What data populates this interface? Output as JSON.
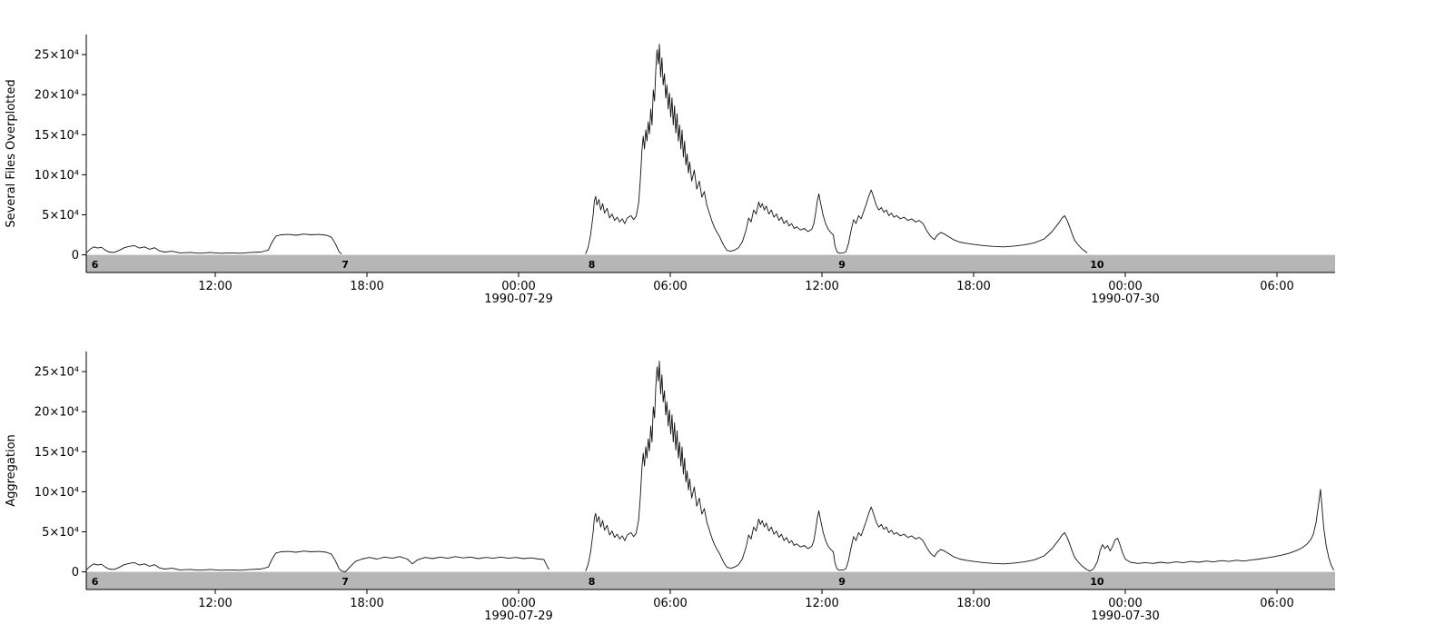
{
  "figure": {
    "background": "#ffffff",
    "num_subplots": 2
  },
  "chart_data": [
    {
      "type": "line",
      "title": "",
      "xlabel": "",
      "ylabel": "Several Files Overplotted",
      "x_unit": "hours since 1990-07-28 00:00",
      "y_unit": "counts, values in units of 10^4",
      "xlim": [
        6.9,
        56.3
      ],
      "ylim": [
        -2.2,
        27.5
      ],
      "grid": false,
      "legend": "none",
      "line_color": "#111111",
      "yticks": [
        {
          "v": 0,
          "label": "0"
        },
        {
          "v": 5,
          "label": "5×10⁴"
        },
        {
          "v": 10,
          "label": "10×10⁴"
        },
        {
          "v": 15,
          "label": "15×10⁴"
        },
        {
          "v": 20,
          "label": "20×10⁴"
        },
        {
          "v": 25,
          "label": "25×10⁴"
        }
      ],
      "xticks": [
        {
          "v": 12,
          "label": "12:00"
        },
        {
          "v": 18,
          "label": "18:00"
        },
        {
          "v": 24,
          "label": "00:00",
          "date": "1990-07-29"
        },
        {
          "v": 30,
          "label": "06:00"
        },
        {
          "v": 36,
          "label": "12:00"
        },
        {
          "v": 42,
          "label": "18:00"
        },
        {
          "v": 48,
          "label": "00:00",
          "date": "1990-07-30"
        },
        {
          "v": 54,
          "label": "06:00"
        }
      ],
      "band": {
        "color": "#b6b6b6",
        "label_color": "#ffffff",
        "from": 0,
        "markers": [
          {
            "t": 7.0,
            "label": "6"
          },
          {
            "t": 16.9,
            "label": "7"
          },
          {
            "t": 26.65,
            "label": "8"
          },
          {
            "t": 36.55,
            "label": "9"
          },
          {
            "t": 46.5,
            "label": "10"
          }
        ]
      },
      "segments_used": [
        "day28",
        "event"
      ]
    },
    {
      "type": "line",
      "title": "",
      "xlabel": "",
      "ylabel": "Aggregation",
      "x_unit": "hours since 1990-07-28 00:00",
      "y_unit": "counts, values in units of 10^4",
      "xlim": [
        6.9,
        56.3
      ],
      "ylim": [
        -2.2,
        27.5
      ],
      "grid": false,
      "legend": "none",
      "line_color": "#111111",
      "yticks": [
        {
          "v": 0,
          "label": "0"
        },
        {
          "v": 5,
          "label": "5×10⁴"
        },
        {
          "v": 10,
          "label": "10×10⁴"
        },
        {
          "v": 15,
          "label": "15×10⁴"
        },
        {
          "v": 20,
          "label": "20×10⁴"
        },
        {
          "v": 25,
          "label": "25×10⁴"
        }
      ],
      "xticks": [
        {
          "v": 12,
          "label": "12:00"
        },
        {
          "v": 18,
          "label": "18:00"
        },
        {
          "v": 24,
          "label": "00:00",
          "date": "1990-07-29"
        },
        {
          "v": 30,
          "label": "06:00"
        },
        {
          "v": 36,
          "label": "12:00"
        },
        {
          "v": 42,
          "label": "18:00"
        },
        {
          "v": 48,
          "label": "00:00",
          "date": "1990-07-30"
        },
        {
          "v": 54,
          "label": "06:00"
        }
      ],
      "band": {
        "color": "#b6b6b6",
        "label_color": "#ffffff",
        "from": 0,
        "markers": [
          {
            "t": 7.0,
            "label": "6"
          },
          {
            "t": 16.9,
            "label": "7"
          },
          {
            "t": 26.65,
            "label": "8"
          },
          {
            "t": 36.55,
            "label": "9"
          },
          {
            "t": 46.5,
            "label": "10"
          }
        ]
      },
      "segments_used": [
        "day28",
        "evening_fill",
        "event",
        "tail"
      ]
    }
  ],
  "series_segments": {
    "day28": [
      [
        6.9,
        0.25
      ],
      [
        7.05,
        0.7
      ],
      [
        7.2,
        1.0
      ],
      [
        7.35,
        0.85
      ],
      [
        7.5,
        0.95
      ],
      [
        7.65,
        0.6
      ],
      [
        7.8,
        0.35
      ],
      [
        8.0,
        0.3
      ],
      [
        8.2,
        0.55
      ],
      [
        8.4,
        0.9
      ],
      [
        8.6,
        1.05
      ],
      [
        8.8,
        1.15
      ],
      [
        9.0,
        0.85
      ],
      [
        9.2,
        1.0
      ],
      [
        9.4,
        0.7
      ],
      [
        9.6,
        0.9
      ],
      [
        9.8,
        0.5
      ],
      [
        10.0,
        0.35
      ],
      [
        10.3,
        0.45
      ],
      [
        10.6,
        0.25
      ],
      [
        11.0,
        0.3
      ],
      [
        11.4,
        0.2
      ],
      [
        11.8,
        0.3
      ],
      [
        12.2,
        0.2
      ],
      [
        12.6,
        0.25
      ],
      [
        13.0,
        0.2
      ],
      [
        13.4,
        0.3
      ],
      [
        13.8,
        0.35
      ],
      [
        14.1,
        0.6
      ],
      [
        14.25,
        1.6
      ],
      [
        14.4,
        2.35
      ],
      [
        14.6,
        2.5
      ],
      [
        14.9,
        2.55
      ],
      [
        15.2,
        2.45
      ],
      [
        15.5,
        2.6
      ],
      [
        15.8,
        2.5
      ],
      [
        16.1,
        2.55
      ],
      [
        16.4,
        2.45
      ],
      [
        16.6,
        2.2
      ],
      [
        16.75,
        1.4
      ],
      [
        16.9,
        0.4
      ],
      [
        17.0,
        0.1
      ]
    ],
    "evening_fill": [
      [
        17.0,
        0.1
      ],
      [
        17.15,
        0.0
      ],
      [
        17.35,
        0.7
      ],
      [
        17.55,
        1.3
      ],
      [
        17.8,
        1.6
      ],
      [
        18.1,
        1.8
      ],
      [
        18.4,
        1.6
      ],
      [
        18.7,
        1.85
      ],
      [
        19.0,
        1.7
      ],
      [
        19.3,
        1.9
      ],
      [
        19.6,
        1.6
      ],
      [
        19.8,
        1.0
      ],
      [
        20.0,
        1.5
      ],
      [
        20.3,
        1.8
      ],
      [
        20.6,
        1.65
      ],
      [
        20.9,
        1.85
      ],
      [
        21.2,
        1.7
      ],
      [
        21.5,
        1.9
      ],
      [
        21.8,
        1.75
      ],
      [
        22.1,
        1.85
      ],
      [
        22.4,
        1.65
      ],
      [
        22.7,
        1.8
      ],
      [
        23.0,
        1.7
      ],
      [
        23.3,
        1.85
      ],
      [
        23.6,
        1.7
      ],
      [
        23.9,
        1.8
      ],
      [
        24.2,
        1.65
      ],
      [
        24.5,
        1.75
      ],
      [
        24.8,
        1.6
      ],
      [
        25.0,
        1.55
      ],
      [
        25.1,
        0.9
      ],
      [
        25.2,
        0.3
      ]
    ],
    "event": [
      [
        26.65,
        0.1
      ],
      [
        26.75,
        0.9
      ],
      [
        26.85,
        2.5
      ],
      [
        26.95,
        5.0
      ],
      [
        27.0,
        6.8
      ],
      [
        27.05,
        7.3
      ],
      [
        27.1,
        6.2
      ],
      [
        27.18,
        6.9
      ],
      [
        27.25,
        5.6
      ],
      [
        27.33,
        6.4
      ],
      [
        27.4,
        5.2
      ],
      [
        27.5,
        5.8
      ],
      [
        27.6,
        4.6
      ],
      [
        27.7,
        5.1
      ],
      [
        27.8,
        4.3
      ],
      [
        27.9,
        4.7
      ],
      [
        28.0,
        4.1
      ],
      [
        28.1,
        4.5
      ],
      [
        28.2,
        3.9
      ],
      [
        28.3,
        4.6
      ],
      [
        28.45,
        4.9
      ],
      [
        28.55,
        4.4
      ],
      [
        28.65,
        4.8
      ],
      [
        28.75,
        6.5
      ],
      [
        28.82,
        9.5
      ],
      [
        28.88,
        13.0
      ],
      [
        28.93,
        14.8
      ],
      [
        28.98,
        13.2
      ],
      [
        29.03,
        15.6
      ],
      [
        29.08,
        14.2
      ],
      [
        29.13,
        16.6
      ],
      [
        29.18,
        15.1
      ],
      [
        29.23,
        18.2
      ],
      [
        29.28,
        16.2
      ],
      [
        29.33,
        20.6
      ],
      [
        29.38,
        19.2
      ],
      [
        29.43,
        23.2
      ],
      [
        29.48,
        25.6
      ],
      [
        29.53,
        23.8
      ],
      [
        29.57,
        26.3
      ],
      [
        29.62,
        22.2
      ],
      [
        29.67,
        24.6
      ],
      [
        29.72,
        21.2
      ],
      [
        29.77,
        22.6
      ],
      [
        29.82,
        19.6
      ],
      [
        29.87,
        21.2
      ],
      [
        29.92,
        18.2
      ],
      [
        29.97,
        20.2
      ],
      [
        30.02,
        17.2
      ],
      [
        30.07,
        19.6
      ],
      [
        30.12,
        16.2
      ],
      [
        30.17,
        18.6
      ],
      [
        30.22,
        15.2
      ],
      [
        30.27,
        17.6
      ],
      [
        30.32,
        14.2
      ],
      [
        30.37,
        16.2
      ],
      [
        30.42,
        13.2
      ],
      [
        30.47,
        15.6
      ],
      [
        30.52,
        12.2
      ],
      [
        30.57,
        14.2
      ],
      [
        30.62,
        11.2
      ],
      [
        30.67,
        12.6
      ],
      [
        30.72,
        10.2
      ],
      [
        30.77,
        11.6
      ],
      [
        30.85,
        9.2
      ],
      [
        30.95,
        10.6
      ],
      [
        31.05,
        8.2
      ],
      [
        31.15,
        9.2
      ],
      [
        31.25,
        7.2
      ],
      [
        31.35,
        7.9
      ],
      [
        31.45,
        6.2
      ],
      [
        31.55,
        5.2
      ],
      [
        31.65,
        4.2
      ],
      [
        31.75,
        3.4
      ],
      [
        31.85,
        2.8
      ],
      [
        31.95,
        2.3
      ],
      [
        32.05,
        1.6
      ],
      [
        32.15,
        1.0
      ],
      [
        32.25,
        0.55
      ],
      [
        32.4,
        0.45
      ],
      [
        32.55,
        0.6
      ],
      [
        32.7,
        0.9
      ],
      [
        32.85,
        1.6
      ],
      [
        33.0,
        3.1
      ],
      [
        33.1,
        4.6
      ],
      [
        33.2,
        4.1
      ],
      [
        33.3,
        5.6
      ],
      [
        33.4,
        5.1
      ],
      [
        33.5,
        6.6
      ],
      [
        33.57,
        5.9
      ],
      [
        33.64,
        6.4
      ],
      [
        33.72,
        5.6
      ],
      [
        33.8,
        6.1
      ],
      [
        33.9,
        5.1
      ],
      [
        34.0,
        5.6
      ],
      [
        34.1,
        4.7
      ],
      [
        34.2,
        5.1
      ],
      [
        34.3,
        4.3
      ],
      [
        34.4,
        4.7
      ],
      [
        34.5,
        3.9
      ],
      [
        34.6,
        4.3
      ],
      [
        34.7,
        3.6
      ],
      [
        34.8,
        3.9
      ],
      [
        34.9,
        3.3
      ],
      [
        35.0,
        3.5
      ],
      [
        35.15,
        3.1
      ],
      [
        35.3,
        3.3
      ],
      [
        35.45,
        2.9
      ],
      [
        35.6,
        3.2
      ],
      [
        35.68,
        3.9
      ],
      [
        35.75,
        5.2
      ],
      [
        35.82,
        6.8
      ],
      [
        35.88,
        7.6
      ],
      [
        35.95,
        6.4
      ],
      [
        36.05,
        4.9
      ],
      [
        36.15,
        3.9
      ],
      [
        36.25,
        3.2
      ],
      [
        36.35,
        2.8
      ],
      [
        36.45,
        2.5
      ],
      [
        36.52,
        1.1
      ],
      [
        36.6,
        0.35
      ],
      [
        36.7,
        0.2
      ],
      [
        36.85,
        0.25
      ],
      [
        36.95,
        0.4
      ],
      [
        37.05,
        1.4
      ],
      [
        37.15,
        3.0
      ],
      [
        37.25,
        4.4
      ],
      [
        37.35,
        3.9
      ],
      [
        37.45,
        4.9
      ],
      [
        37.55,
        4.5
      ],
      [
        37.65,
        5.4
      ],
      [
        37.75,
        6.3
      ],
      [
        37.85,
        7.3
      ],
      [
        37.95,
        8.1
      ],
      [
        38.05,
        7.2
      ],
      [
        38.15,
        6.2
      ],
      [
        38.25,
        5.6
      ],
      [
        38.35,
        5.9
      ],
      [
        38.45,
        5.3
      ],
      [
        38.55,
        5.6
      ],
      [
        38.65,
        4.9
      ],
      [
        38.75,
        5.2
      ],
      [
        38.85,
        4.7
      ],
      [
        38.95,
        4.9
      ],
      [
        39.1,
        4.5
      ],
      [
        39.25,
        4.7
      ],
      [
        39.4,
        4.3
      ],
      [
        39.55,
        4.5
      ],
      [
        39.7,
        4.1
      ],
      [
        39.85,
        4.3
      ],
      [
        40.0,
        3.9
      ],
      [
        40.15,
        3.0
      ],
      [
        40.3,
        2.3
      ],
      [
        40.45,
        1.9
      ],
      [
        40.55,
        2.4
      ],
      [
        40.7,
        2.8
      ],
      [
        40.85,
        2.6
      ],
      [
        41.0,
        2.3
      ],
      [
        41.2,
        1.9
      ],
      [
        41.45,
        1.6
      ],
      [
        41.7,
        1.45
      ],
      [
        42.0,
        1.3
      ],
      [
        42.4,
        1.15
      ],
      [
        42.8,
        1.05
      ],
      [
        43.2,
        1.0
      ],
      [
        43.6,
        1.1
      ],
      [
        44.0,
        1.25
      ],
      [
        44.4,
        1.5
      ],
      [
        44.8,
        2.0
      ],
      [
        45.1,
        2.9
      ],
      [
        45.35,
        3.9
      ],
      [
        45.5,
        4.6
      ],
      [
        45.6,
        4.9
      ],
      [
        45.7,
        4.3
      ],
      [
        45.8,
        3.5
      ],
      [
        45.9,
        2.6
      ],
      [
        46.0,
        1.8
      ],
      [
        46.15,
        1.2
      ],
      [
        46.3,
        0.7
      ],
      [
        46.45,
        0.35
      ],
      [
        46.5,
        0.25
      ]
    ],
    "tail": [
      [
        46.5,
        0.25
      ],
      [
        46.6,
        0.1
      ],
      [
        46.75,
        0.4
      ],
      [
        46.9,
        1.3
      ],
      [
        47.0,
        2.6
      ],
      [
        47.1,
        3.4
      ],
      [
        47.2,
        2.9
      ],
      [
        47.3,
        3.3
      ],
      [
        47.4,
        2.6
      ],
      [
        47.5,
        3.2
      ],
      [
        47.6,
        4.0
      ],
      [
        47.7,
        4.2
      ],
      [
        47.8,
        3.3
      ],
      [
        47.9,
        2.3
      ],
      [
        48.0,
        1.6
      ],
      [
        48.2,
        1.2
      ],
      [
        48.5,
        1.05
      ],
      [
        48.8,
        1.15
      ],
      [
        49.1,
        1.05
      ],
      [
        49.4,
        1.2
      ],
      [
        49.7,
        1.1
      ],
      [
        50.0,
        1.25
      ],
      [
        50.3,
        1.15
      ],
      [
        50.6,
        1.3
      ],
      [
        50.9,
        1.2
      ],
      [
        51.2,
        1.35
      ],
      [
        51.5,
        1.25
      ],
      [
        51.8,
        1.4
      ],
      [
        52.1,
        1.3
      ],
      [
        52.4,
        1.45
      ],
      [
        52.7,
        1.35
      ],
      [
        53.0,
        1.5
      ],
      [
        53.3,
        1.6
      ],
      [
        53.6,
        1.75
      ],
      [
        53.9,
        1.9
      ],
      [
        54.2,
        2.1
      ],
      [
        54.5,
        2.35
      ],
      [
        54.8,
        2.7
      ],
      [
        55.0,
        3.0
      ],
      [
        55.2,
        3.5
      ],
      [
        55.35,
        4.1
      ],
      [
        55.45,
        4.8
      ],
      [
        55.55,
        6.2
      ],
      [
        55.65,
        8.5
      ],
      [
        55.72,
        10.3
      ],
      [
        55.78,
        8.2
      ],
      [
        55.85,
        5.5
      ],
      [
        55.95,
        3.2
      ],
      [
        56.05,
        1.8
      ],
      [
        56.15,
        0.8
      ],
      [
        56.25,
        0.2
      ]
    ]
  }
}
